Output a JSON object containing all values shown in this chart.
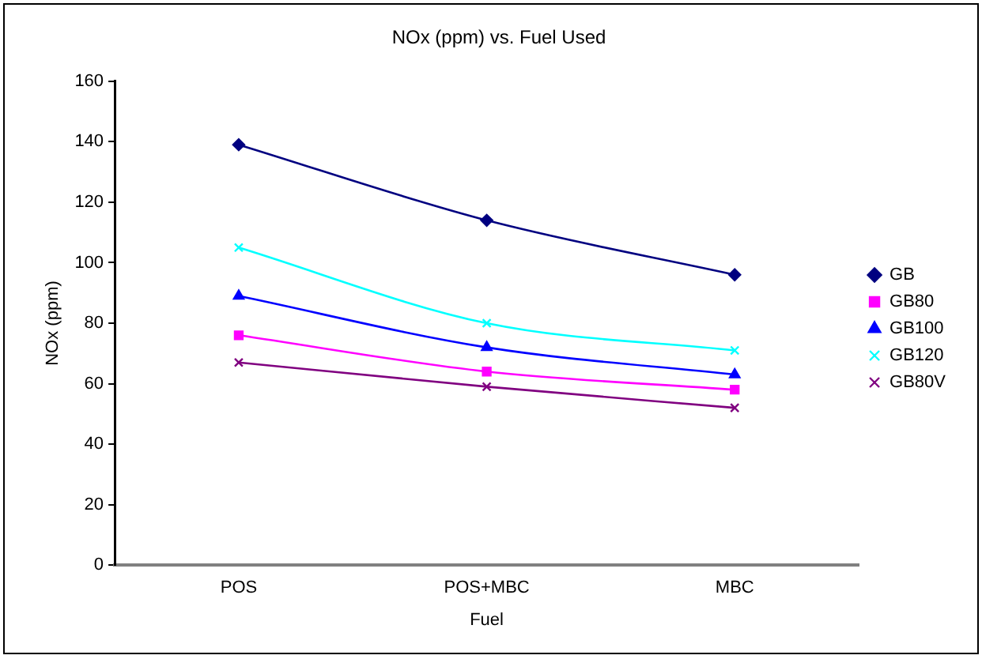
{
  "chart_data": {
    "type": "line",
    "title": "NOx (ppm) vs. Fuel Used",
    "xlabel": "Fuel",
    "ylabel": "NOx (ppm)",
    "categories": [
      "POS",
      "POS+MBC",
      "MBC"
    ],
    "series": [
      {
        "name": "GB",
        "color": "#000080",
        "values": [
          139,
          114,
          96
        ],
        "marker": "diamond"
      },
      {
        "name": "GB80",
        "color": "#ff00ff",
        "values": [
          76,
          64,
          58
        ],
        "marker": "square"
      },
      {
        "name": "GB100",
        "color": "#0000ff",
        "values": [
          89,
          72,
          63
        ],
        "marker": "triangle"
      },
      {
        "name": "GB120",
        "color": "#00ffff",
        "values": [
          105,
          80,
          71
        ],
        "marker": "cross"
      },
      {
        "name": "GB80V",
        "color": "#800080",
        "values": [
          67,
          59,
          52
        ],
        "marker": "cross"
      }
    ],
    "ylim": [
      0,
      160
    ],
    "yticks": [
      0,
      20,
      40,
      60,
      80,
      100,
      120,
      140,
      160
    ],
    "grid": false,
    "legend": "right",
    "line_style": "solid"
  }
}
